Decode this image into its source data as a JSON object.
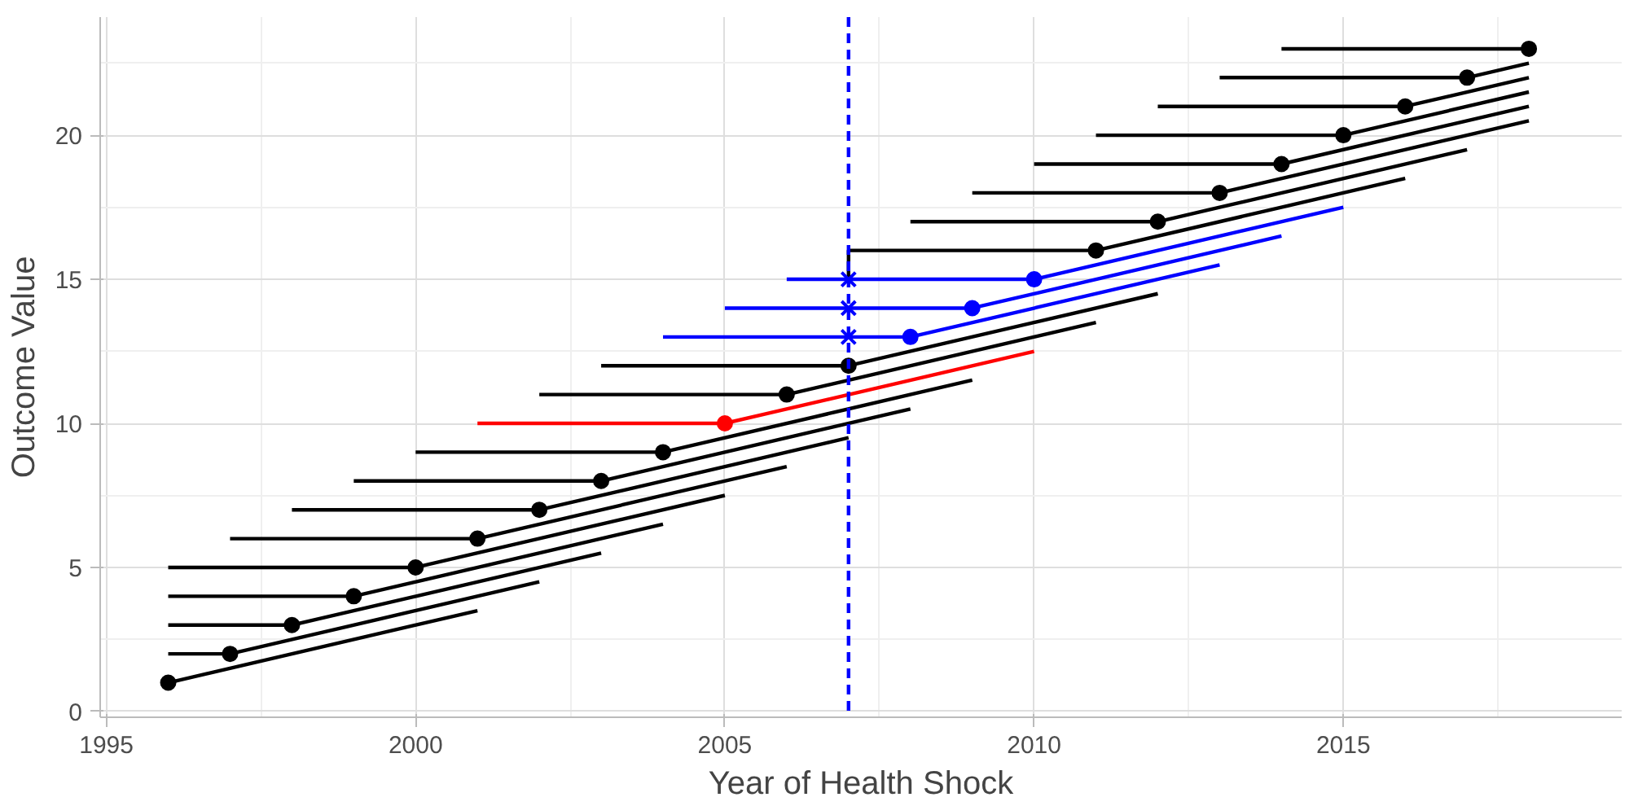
{
  "chart_data": {
    "type": "line",
    "xlabel": "Year of Health Shock",
    "ylabel": "Outcome Value",
    "xlim": [
      1994.9,
      2019.5
    ],
    "ylim": [
      -0.2,
      24.1
    ],
    "xticks": [
      1995,
      2000,
      2005,
      2010,
      2015
    ],
    "yticks": [
      0,
      5,
      10,
      15,
      20
    ],
    "grid": true,
    "line_style": "solid",
    "series": [
      {
        "color": "#000000",
        "x": [
          1996,
          2001
        ],
        "values": [
          1,
          3.5
        ]
      },
      {
        "color": "#000000",
        "x": [
          1996,
          1997,
          2002
        ],
        "values": [
          2,
          2,
          4.5
        ]
      },
      {
        "color": "#000000",
        "x": [
          1996,
          1998,
          2003
        ],
        "values": [
          3,
          3,
          5.5
        ]
      },
      {
        "color": "#000000",
        "x": [
          1996,
          1999,
          2004
        ],
        "values": [
          4,
          4,
          6.5
        ]
      },
      {
        "color": "#000000",
        "x": [
          1996,
          2000,
          2005
        ],
        "values": [
          5,
          5,
          7.5
        ]
      },
      {
        "color": "#000000",
        "x": [
          1997,
          2001,
          2006
        ],
        "values": [
          6,
          6,
          8.5
        ]
      },
      {
        "color": "#000000",
        "x": [
          1998,
          2002,
          2007
        ],
        "values": [
          7,
          7,
          9.5
        ]
      },
      {
        "color": "#000000",
        "x": [
          1999,
          2003,
          2008
        ],
        "values": [
          8,
          8,
          10.5
        ]
      },
      {
        "color": "#000000",
        "x": [
          2000,
          2004,
          2009
        ],
        "values": [
          9,
          9,
          11.5
        ]
      },
      {
        "color": "#ff0000",
        "x": [
          2001,
          2005,
          2010
        ],
        "values": [
          10,
          10,
          12.5
        ]
      },
      {
        "color": "#000000",
        "x": [
          2002,
          2006,
          2011
        ],
        "values": [
          11,
          11,
          13.5
        ]
      },
      {
        "color": "#000000",
        "x": [
          2003,
          2007,
          2012
        ],
        "values": [
          12,
          12,
          14.5
        ]
      },
      {
        "color": "#0000ff",
        "x": [
          2004,
          2008,
          2013
        ],
        "values": [
          13,
          13,
          15.5
        ]
      },
      {
        "color": "#0000ff",
        "x": [
          2005,
          2009,
          2014
        ],
        "values": [
          14,
          14,
          16.5
        ]
      },
      {
        "color": "#0000ff",
        "x": [
          2006,
          2010,
          2015
        ],
        "values": [
          15,
          15,
          17.5
        ]
      },
      {
        "color": "#000000",
        "x": [
          2007,
          2007,
          2011,
          2016
        ],
        "values": [
          15,
          16,
          16,
          18.5
        ]
      },
      {
        "color": "#000000",
        "x": [
          2008,
          2012,
          2017
        ],
        "values": [
          17,
          17,
          19.5
        ]
      },
      {
        "color": "#000000",
        "x": [
          2009,
          2013,
          2018
        ],
        "values": [
          18,
          18,
          20.5
        ]
      },
      {
        "color": "#000000",
        "x": [
          2010,
          2014,
          2018
        ],
        "values": [
          19,
          19,
          21
        ]
      },
      {
        "color": "#000000",
        "x": [
          2011,
          2015,
          2018
        ],
        "values": [
          20,
          20,
          21.5
        ]
      },
      {
        "color": "#000000",
        "x": [
          2012,
          2016,
          2018
        ],
        "values": [
          21,
          21,
          22
        ]
      },
      {
        "color": "#000000",
        "x": [
          2013,
          2017,
          2018
        ],
        "values": [
          22,
          22,
          22.5
        ]
      },
      {
        "color": "#000000",
        "x": [
          2014,
          2018
        ],
        "values": [
          23,
          23
        ]
      },
      {
        "type": "scatter",
        "marker": "circle",
        "color": "#000000",
        "x": [
          1996,
          1997,
          1998,
          1999,
          2000,
          2001,
          2002,
          2003,
          2004,
          2006,
          2007,
          2011,
          2012,
          2013,
          2014,
          2015,
          2016,
          2017,
          2018
        ],
        "values": [
          1,
          2,
          3,
          4,
          5,
          6,
          7,
          8,
          9,
          11,
          12,
          16,
          17,
          18,
          19,
          20,
          21,
          22,
          23
        ]
      },
      {
        "type": "scatter",
        "marker": "circle",
        "color": "#ff0000",
        "x": [
          2005
        ],
        "values": [
          10
        ]
      },
      {
        "type": "scatter",
        "marker": "circle",
        "color": "#0000ff",
        "x": [
          2008,
          2009,
          2010
        ],
        "values": [
          13,
          14,
          15
        ]
      },
      {
        "type": "scatter",
        "marker": "cross",
        "color": "#0000ff",
        "x": [
          2007,
          2007,
          2007
        ],
        "values": [
          13,
          14,
          15
        ]
      }
    ],
    "ref_lines": [
      {
        "axis": "x",
        "value": 2007,
        "color": "#0000ff",
        "line_style": "dashed"
      }
    ]
  }
}
